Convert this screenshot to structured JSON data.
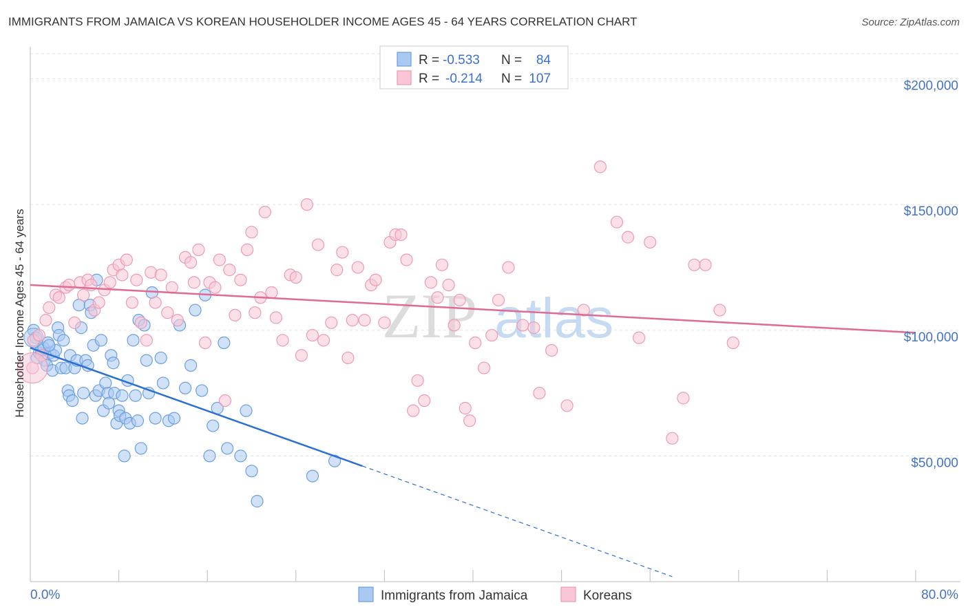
{
  "header": {
    "title": "IMMIGRANTS FROM JAMAICA VS KOREAN HOUSEHOLDER INCOME AGES 45 - 64 YEARS CORRELATION CHART",
    "source": "Source: ZipAtlas.com"
  },
  "watermark": {
    "part1": "ZIP",
    "part2": "atlas"
  },
  "legend": {
    "rows": [
      {
        "r_label": "R = ",
        "r_value": "-0.533",
        "n_label": "N = ",
        "n_value": "84"
      },
      {
        "r_label": "R = ",
        "r_value": "-0.214",
        "n_label": "N = ",
        "n_value": "107"
      }
    ]
  },
  "chart_data": {
    "type": "scatter",
    "xlabel": "",
    "ylabel": "Householder Income Ages 45 - 64 years",
    "xlim": [
      0,
      80
    ],
    "ylim": [
      0,
      210000
    ],
    "x_tick_labels": [
      "0.0%",
      "80.0%"
    ],
    "y_ticks": [
      50000,
      100000,
      150000,
      200000
    ],
    "y_tick_labels": [
      "$50,000",
      "$100,000",
      "$150,000",
      "$200,000"
    ],
    "grid": true,
    "legend_position": "top-center",
    "series": [
      {
        "name": "Immigrants from Jamaica",
        "color": "#7aaee8",
        "line_color": "#2a6fd6",
        "trend": {
          "x": [
            0,
            30
          ],
          "y": [
            93000,
            46000
          ],
          "dash_to": [
            58,
            2000
          ]
        },
        "points": [
          [
            0.3,
            100000
          ],
          [
            0.5,
            97000
          ],
          [
            0.6,
            89000
          ],
          [
            0.8,
            91000
          ],
          [
            1.0,
            92000
          ],
          [
            1.2,
            93000
          ],
          [
            1.3,
            88000
          ],
          [
            1.5,
            86000
          ],
          [
            1.6,
            95000
          ],
          [
            1.8,
            91000
          ],
          [
            2.0,
            84000
          ],
          [
            2.1,
            90000
          ],
          [
            2.3,
            92000
          ],
          [
            2.5,
            101000
          ],
          [
            2.6,
            98000
          ],
          [
            2.8,
            85000
          ],
          [
            3.0,
            96000
          ],
          [
            3.2,
            85000
          ],
          [
            3.4,
            76000
          ],
          [
            3.5,
            74000
          ],
          [
            3.6,
            90000
          ],
          [
            3.8,
            72000
          ],
          [
            4.0,
            85000
          ],
          [
            4.2,
            88000
          ],
          [
            4.4,
            110000
          ],
          [
            4.6,
            101000
          ],
          [
            4.7,
            65000
          ],
          [
            4.8,
            75000
          ],
          [
            5.0,
            88000
          ],
          [
            5.2,
            86000
          ],
          [
            5.4,
            110000
          ],
          [
            5.5,
            107000
          ],
          [
            5.7,
            94000
          ],
          [
            5.9,
            74000
          ],
          [
            6.0,
            120000
          ],
          [
            6.2,
            76000
          ],
          [
            6.4,
            96000
          ],
          [
            6.6,
            68000
          ],
          [
            6.8,
            79000
          ],
          [
            7.0,
            75000
          ],
          [
            7.1,
            71000
          ],
          [
            7.3,
            90000
          ],
          [
            7.5,
            87000
          ],
          [
            7.6,
            75000
          ],
          [
            7.8,
            63000
          ],
          [
            8.0,
            68000
          ],
          [
            8.1,
            66000
          ],
          [
            8.3,
            74000
          ],
          [
            8.5,
            50000
          ],
          [
            8.6,
            65000
          ],
          [
            8.8,
            80000
          ],
          [
            9.0,
            63000
          ],
          [
            9.3,
            96000
          ],
          [
            9.5,
            74000
          ],
          [
            9.7,
            64000
          ],
          [
            9.8,
            104000
          ],
          [
            10.0,
            53000
          ],
          [
            10.3,
            102000
          ],
          [
            10.5,
            88000
          ],
          [
            10.7,
            75000
          ],
          [
            11.0,
            115000
          ],
          [
            11.3,
            65000
          ],
          [
            11.8,
            89000
          ],
          [
            12.0,
            79000
          ],
          [
            12.5,
            64000
          ],
          [
            13.0,
            65000
          ],
          [
            13.5,
            102000
          ],
          [
            14.0,
            77000
          ],
          [
            14.5,
            86000
          ],
          [
            14.9,
            108000
          ],
          [
            15.5,
            76000
          ],
          [
            15.8,
            114000
          ],
          [
            16.2,
            50000
          ],
          [
            16.5,
            62000
          ],
          [
            16.9,
            69000
          ],
          [
            17.5,
            95000
          ],
          [
            17.8,
            53000
          ],
          [
            19.0,
            50000
          ],
          [
            19.5,
            68000
          ],
          [
            20.0,
            44000
          ],
          [
            20.5,
            32000
          ],
          [
            25.5,
            42000
          ],
          [
            27.5,
            48000
          ],
          [
            1.7,
            94000
          ]
        ]
      },
      {
        "name": "Koreans",
        "color": "#f4a6bf",
        "line_color": "#e06a93",
        "trend": {
          "x": [
            0,
            80
          ],
          "y": [
            118000,
            99000
          ]
        },
        "points": [
          [
            0.2,
            85000
          ],
          [
            0.3,
            96000
          ],
          [
            0.8,
            98000
          ],
          [
            1.0,
            90000
          ],
          [
            1.4,
            104000
          ],
          [
            1.7,
            109000
          ],
          [
            2.3,
            114000
          ],
          [
            2.6,
            113000
          ],
          [
            3.2,
            117000
          ],
          [
            3.5,
            118000
          ],
          [
            4.0,
            103000
          ],
          [
            4.5,
            119000
          ],
          [
            4.8,
            114000
          ],
          [
            5.2,
            120000
          ],
          [
            5.5,
            118000
          ],
          [
            5.8,
            108000
          ],
          [
            6.2,
            111000
          ],
          [
            6.7,
            116000
          ],
          [
            7.2,
            119000
          ],
          [
            7.5,
            124000
          ],
          [
            8.0,
            126000
          ],
          [
            8.3,
            122000
          ],
          [
            8.7,
            128000
          ],
          [
            9.2,
            111000
          ],
          [
            9.6,
            120000
          ],
          [
            10.0,
            103000
          ],
          [
            10.5,
            96000
          ],
          [
            10.9,
            123000
          ],
          [
            11.3,
            111000
          ],
          [
            11.8,
            122000
          ],
          [
            12.4,
            107000
          ],
          [
            12.8,
            117000
          ],
          [
            13.3,
            104000
          ],
          [
            14.0,
            129000
          ],
          [
            14.5,
            127000
          ],
          [
            14.8,
            119000
          ],
          [
            15.2,
            132000
          ],
          [
            15.8,
            95000
          ],
          [
            16.2,
            119000
          ],
          [
            16.7,
            117000
          ],
          [
            17.1,
            128000
          ],
          [
            17.6,
            72000
          ],
          [
            18.0,
            124000
          ],
          [
            18.5,
            106000
          ],
          [
            19.0,
            120000
          ],
          [
            19.6,
            132000
          ],
          [
            20.0,
            139000
          ],
          [
            20.3,
            107000
          ],
          [
            20.8,
            113000
          ],
          [
            21.2,
            147000
          ],
          [
            21.8,
            115000
          ],
          [
            22.2,
            105000
          ],
          [
            22.8,
            96000
          ],
          [
            23.5,
            122000
          ],
          [
            24.0,
            121000
          ],
          [
            24.5,
            90000
          ],
          [
            25.0,
            150000
          ],
          [
            25.5,
            98000
          ],
          [
            26.0,
            134000
          ],
          [
            26.5,
            96000
          ],
          [
            27.2,
            103000
          ],
          [
            27.7,
            124000
          ],
          [
            28.2,
            131000
          ],
          [
            28.7,
            89000
          ],
          [
            29.1,
            104000
          ],
          [
            29.6,
            125000
          ],
          [
            30.2,
            104000
          ],
          [
            30.8,
            118000
          ],
          [
            31.2,
            120000
          ],
          [
            32.0,
            103000
          ],
          [
            32.5,
            135000
          ],
          [
            33.0,
            138000
          ],
          [
            33.5,
            138000
          ],
          [
            34.0,
            128000
          ],
          [
            34.6,
            68000
          ],
          [
            35.0,
            80000
          ],
          [
            35.6,
            72000
          ],
          [
            36.2,
            119000
          ],
          [
            36.8,
            113000
          ],
          [
            37.2,
            126000
          ],
          [
            37.8,
            118000
          ],
          [
            38.3,
            102000
          ],
          [
            38.8,
            112000
          ],
          [
            39.3,
            69000
          ],
          [
            39.7,
            64000
          ],
          [
            40.2,
            95000
          ],
          [
            41.0,
            85000
          ],
          [
            41.7,
            98000
          ],
          [
            42.3,
            112000
          ],
          [
            43.2,
            125000
          ],
          [
            44.5,
            102000
          ],
          [
            45.5,
            101000
          ],
          [
            46.0,
            75000
          ],
          [
            47.1,
            92000
          ],
          [
            48.5,
            70000
          ],
          [
            50.0,
            108000
          ],
          [
            51.5,
            165000
          ],
          [
            53.0,
            143000
          ],
          [
            54.0,
            137000
          ],
          [
            55.0,
            97000
          ],
          [
            56.0,
            135000
          ],
          [
            58.0,
            57000
          ],
          [
            59.0,
            73000
          ],
          [
            60.0,
            126000
          ],
          [
            61.0,
            126000
          ],
          [
            62.3,
            108000
          ],
          [
            63.5,
            95000
          ]
        ]
      }
    ]
  },
  "bottom_legend": {
    "items": [
      "Immigrants from Jamaica",
      "Koreans"
    ]
  },
  "colors": {
    "blue_fill": "#a9c9f2",
    "blue_stroke": "#6b9fe0",
    "pink_fill": "#f8c6d6",
    "pink_stroke": "#ee9ab5",
    "grid": "#e3e3e3",
    "axis_text": "#4472c4"
  }
}
